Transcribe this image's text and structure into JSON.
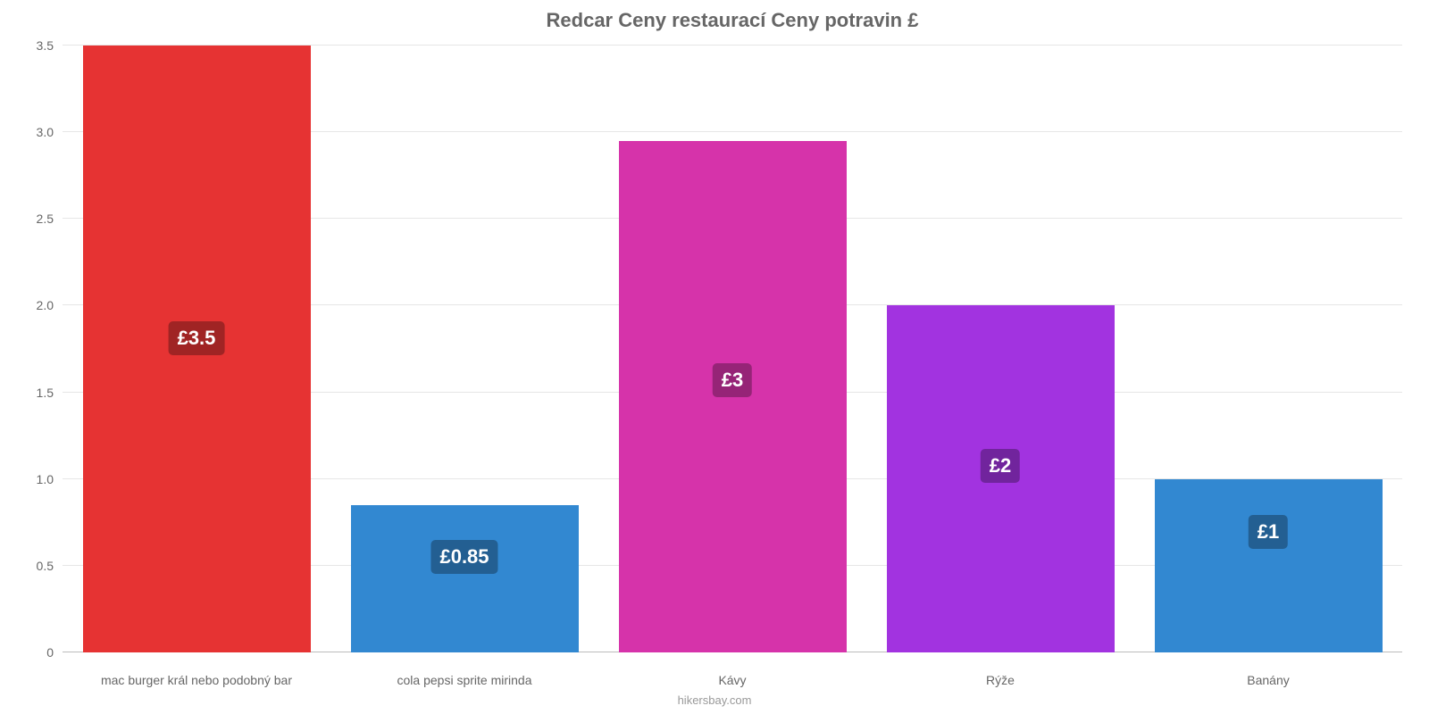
{
  "chart": {
    "type": "bar",
    "title": "Redcar Ceny restaurací Ceny potravin £",
    "title_fontsize": 22,
    "title_color": "#666666",
    "background_color": "#ffffff",
    "grid_color": "#e6e6e6",
    "axis_label_color": "#666666",
    "axis_label_fontsize": 14,
    "attribution": "hikersbay.com",
    "ylim_max": 3.5,
    "yticks": [
      {
        "value": 0,
        "label": "0",
        "pct": 0
      },
      {
        "value": 0.5,
        "label": "0.5",
        "pct": 14.2857
      },
      {
        "value": 1.0,
        "label": "1.0",
        "pct": 28.5714
      },
      {
        "value": 1.5,
        "label": "1.5",
        "pct": 42.8571
      },
      {
        "value": 2.0,
        "label": "2.0",
        "pct": 57.1429
      },
      {
        "value": 2.5,
        "label": "2.5",
        "pct": 71.4286
      },
      {
        "value": 3.0,
        "label": "3.0",
        "pct": 85.7143
      },
      {
        "value": 3.5,
        "label": "3.5",
        "pct": 100
      }
    ],
    "bars": [
      {
        "category": "mac burger král nebo podobný bar",
        "value": 3.5,
        "display_value": "£3.5",
        "height_pct": 100,
        "bar_color": "#e63333",
        "badge_color": "#a02424",
        "badge_bottom_pct": 49
      },
      {
        "category": "cola pepsi sprite mirinda",
        "value": 0.85,
        "display_value": "£0.85",
        "height_pct": 24.2857,
        "bar_color": "#3288d1",
        "badge_color": "#235f92",
        "badge_bottom_pct": 13
      },
      {
        "category": "Kávy",
        "value": 2.95,
        "display_value": "£3",
        "height_pct": 84.2857,
        "bar_color": "#d633aa",
        "badge_color": "#962477",
        "badge_bottom_pct": 42
      },
      {
        "category": "Rýže",
        "value": 2.0,
        "display_value": "£2",
        "height_pct": 57.1429,
        "bar_color": "#a233e0",
        "badge_color": "#71249d",
        "badge_bottom_pct": 28
      },
      {
        "category": "Banány",
        "value": 1.0,
        "display_value": "£1",
        "height_pct": 28.5714,
        "bar_color": "#3288d1",
        "badge_color": "#235f92",
        "badge_bottom_pct": 17
      }
    ]
  }
}
